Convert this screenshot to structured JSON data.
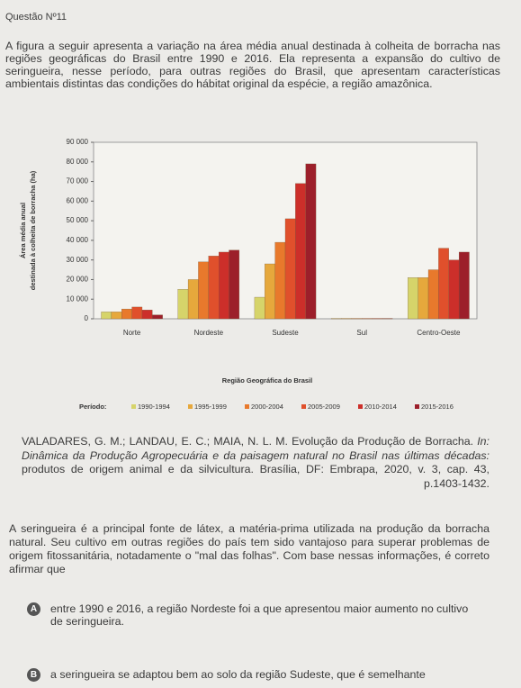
{
  "header": {
    "title": "Questão Nº11"
  },
  "intro": "A figura a seguir apresenta a variação na área média anual destinada à colheita de borracha nas regiões geográficas do Brasil entre 1990 e 2016. Ela representa a expansão do cultivo de seringueira, nesse período, para outras regiões do Brasil, que apresentam características ambientais distintas das condições do hábitat original da espécie, a região amazônica.",
  "chart_data": {
    "type": "bar",
    "ylabel": [
      "Área média anual",
      "destinada à colheita de borracha (ha)"
    ],
    "xlabel": "Região Geográfica do Brasil",
    "legend_title": "Período:",
    "categories": [
      "Norte",
      "Nordeste",
      "Sudeste",
      "Sul",
      "Centro-Oeste"
    ],
    "series": [
      {
        "name": "1990-1994",
        "color": "#d6d46a",
        "values": [
          3500,
          15000,
          11000,
          200,
          21000
        ]
      },
      {
        "name": "1995-1999",
        "color": "#e6a83c",
        "values": [
          3500,
          20000,
          28000,
          200,
          21000
        ]
      },
      {
        "name": "2000-2004",
        "color": "#e8792c",
        "values": [
          5000,
          29000,
          39000,
          200,
          25000
        ]
      },
      {
        "name": "2005-2009",
        "color": "#e0502c",
        "values": [
          6000,
          32000,
          51000,
          200,
          36000
        ]
      },
      {
        "name": "2010-2014",
        "color": "#cc2f2a",
        "values": [
          4500,
          34000,
          69000,
          200,
          30000
        ]
      },
      {
        "name": "2015-2016",
        "color": "#9c1f2a",
        "values": [
          2000,
          35000,
          79000,
          200,
          34000
        ]
      }
    ],
    "ylim": [
      0,
      90000
    ],
    "yticks": [
      0,
      {
        "value": 10000,
        "label": "10 000"
      },
      {
        "value": 20000,
        "label": "20 000"
      },
      {
        "value": 30000,
        "label": "30 000"
      },
      {
        "value": 40000,
        "label": "40 000"
      },
      {
        "value": 50000,
        "label": "50 000"
      },
      {
        "value": 60000,
        "label": "60 000"
      },
      {
        "value": 70000,
        "label": "70 000"
      },
      {
        "value": 80000,
        "label": "80 000"
      },
      {
        "value": 90000,
        "label": "90 000"
      }
    ],
    "grid": false
  },
  "citation": {
    "authors": "VALADARES, G. M.; LANDAU, E. C.; MAIA, N. L. M. Evolução da Produção de Borracha.",
    "italic": "In: Dinâmica da Produção Agropecuária e da paisagem natural no Brasil nas últimas décadas:",
    "rest": "produtos de origem animal e da silvicultura. Brasília, DF: Embrapa, 2020, v. 3, cap. 43, p.1403-1432."
  },
  "statement": "A seringueira é a principal fonte de látex, a matéria-prima utilizada na produção da borracha natural. Seu cultivo em outras regiões do país tem sido vantajoso para superar problemas de origem fitossanitária, notadamente o \"mal das folhas\". Com base nessas informações, é correto afirmar que",
  "options": [
    {
      "letter": "A",
      "text": "entre 1990 e 2016, a região Nordeste foi a que apresentou maior aumento no cultivo de seringueira."
    },
    {
      "letter": "B",
      "text": "a seringueira se adaptou bem ao solo da região Sudeste, que é semelhante"
    }
  ]
}
